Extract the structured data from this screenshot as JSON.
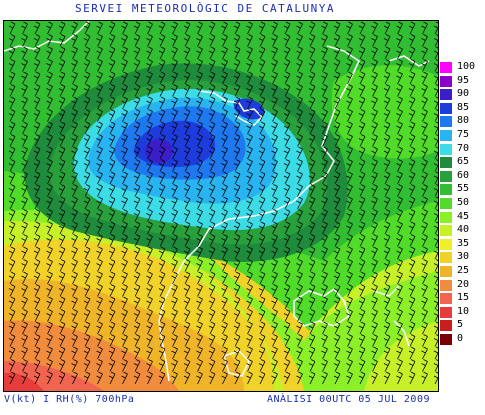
{
  "header": {
    "title": "SERVEI METEOROLÒGIC DE CATALUNYA"
  },
  "footer": {
    "variables": "V(kt) I RH(%) 700hPa",
    "analysis": "ANÀLISI 00UTC 05 JUL 2009"
  },
  "legend": {
    "levels": [
      {
        "label": "100",
        "color": "#ff00ff"
      },
      {
        "label": "95",
        "color": "#8c00c8"
      },
      {
        "label": "90",
        "color": "#3c1ec8"
      },
      {
        "label": "85",
        "color": "#1e3cdc"
      },
      {
        "label": "80",
        "color": "#1e78f0"
      },
      {
        "label": "75",
        "color": "#28b4f0"
      },
      {
        "label": "70",
        "color": "#3cdce6"
      },
      {
        "label": "65",
        "color": "#1e8c3c"
      },
      {
        "label": "60",
        "color": "#28a03c"
      },
      {
        "label": "55",
        "color": "#32be32"
      },
      {
        "label": "50",
        "color": "#50dc28"
      },
      {
        "label": "45",
        "color": "#8cf028"
      },
      {
        "label": "40",
        "color": "#c8f028"
      },
      {
        "label": "35",
        "color": "#f0f028"
      },
      {
        "label": "30",
        "color": "#f0d228"
      },
      {
        "label": "25",
        "color": "#f0b428"
      },
      {
        "label": "20",
        "color": "#f08c3c"
      },
      {
        "label": "15",
        "color": "#f06450"
      },
      {
        "label": "10",
        "color": "#e63c3c"
      },
      {
        "label": "5",
        "color": "#c81e1e"
      },
      {
        "label": "0",
        "color": "#780000"
      }
    ]
  }
}
